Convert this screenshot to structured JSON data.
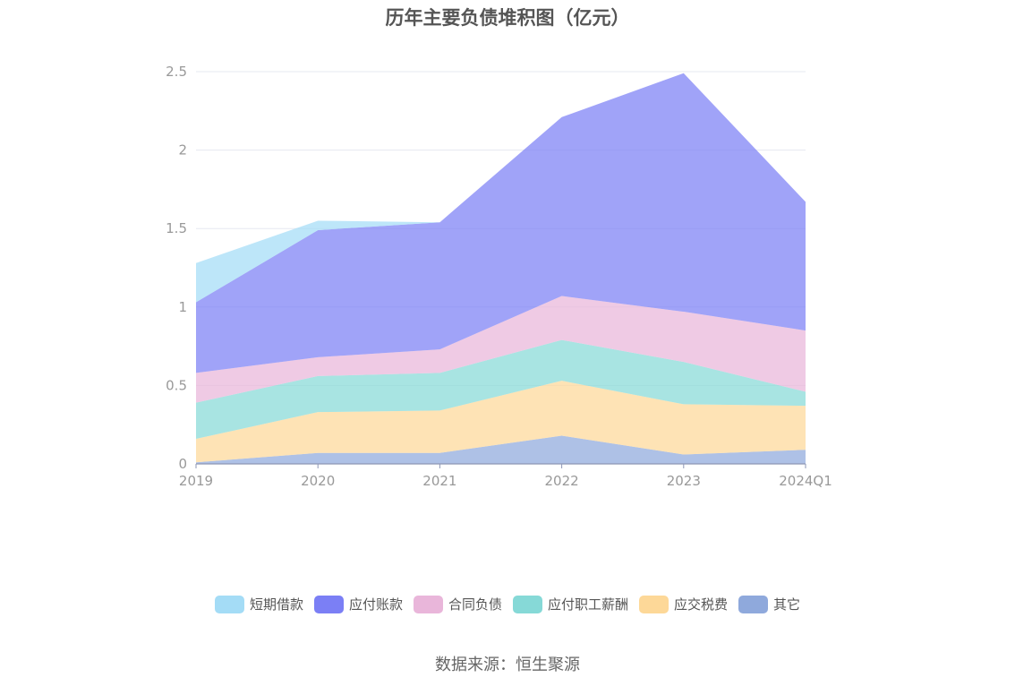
{
  "title": "历年主要负债堆积图（亿元）",
  "source": "数据来源：恒生聚源",
  "chart_data": {
    "type": "area",
    "stacked": true,
    "categories": [
      "2019",
      "2020",
      "2021",
      "2022",
      "2023",
      "2024Q1"
    ],
    "ylim": [
      0,
      2.5
    ],
    "yticks": [
      "0",
      "0.5",
      "1",
      "1.5",
      "2",
      "2.5"
    ],
    "grid": true,
    "legend_position": "bottom",
    "series": [
      {
        "name": "其它",
        "color": "#8fa9dc",
        "values": [
          0.01,
          0.07,
          0.07,
          0.18,
          0.06,
          0.09
        ]
      },
      {
        "name": "应交税费",
        "color": "#fdd898",
        "values": [
          0.15,
          0.26,
          0.27,
          0.35,
          0.32,
          0.28
        ]
      },
      {
        "name": "应付职工薪酬",
        "color": "#86d9d7",
        "values": [
          0.23,
          0.23,
          0.24,
          0.26,
          0.27,
          0.09
        ]
      },
      {
        "name": "合同负债",
        "color": "#e9b6da",
        "values": [
          0.19,
          0.12,
          0.15,
          0.28,
          0.32,
          0.39
        ]
      },
      {
        "name": "应付账款",
        "color": "#7b7ff5",
        "values": [
          0.45,
          0.81,
          0.81,
          1.14,
          1.52,
          0.82
        ]
      },
      {
        "name": "短期借款",
        "color": "#a4dcf6",
        "values": [
          0.25,
          0.06,
          0.0,
          0.0,
          0.0,
          0.0
        ]
      }
    ]
  }
}
